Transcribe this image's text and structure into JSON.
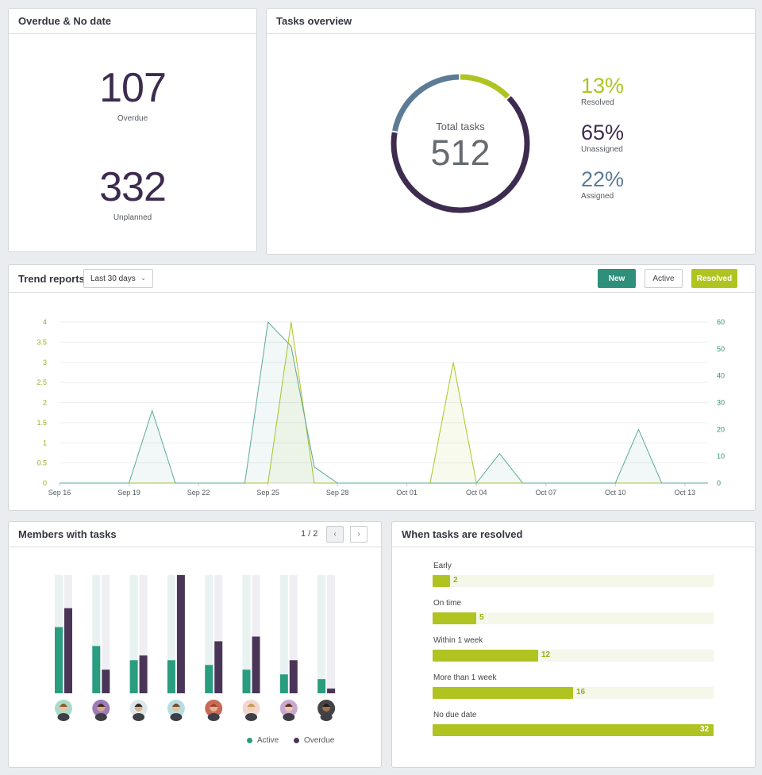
{
  "overdue_panel": {
    "title": "Overdue & No date",
    "overdue_value": "107",
    "overdue_label": "Overdue",
    "unplanned_value": "332",
    "unplanned_label": "Unplanned"
  },
  "overview_panel": {
    "title": "Tasks overview",
    "total_label": "Total tasks",
    "total_value": "512",
    "stats": [
      {
        "value": "13%",
        "label": "Resolved",
        "fraction": 0.13,
        "color": "#b0c421"
      },
      {
        "value": "65%",
        "label": "Unassigned",
        "fraction": 0.65,
        "color": "#3d2c4f"
      },
      {
        "value": "22%",
        "label": "Assigned",
        "fraction": 0.22,
        "color": "#5c7c96"
      }
    ]
  },
  "trend_panel": {
    "title": "Trend reports",
    "range_value": "Last 30 days",
    "buttons": {
      "new": "New",
      "active": "Active",
      "resolved": "Resolved"
    }
  },
  "chart_data": {
    "type": "area",
    "x": [
      "Sep 16",
      "Sep 17",
      "Sep 18",
      "Sep 19",
      "Sep 20",
      "Sep 21",
      "Sep 22",
      "Sep 23",
      "Sep 24",
      "Sep 25",
      "Sep 26",
      "Sep 27",
      "Sep 28",
      "Sep 29",
      "Sep 30",
      "Oct 01",
      "Oct 02",
      "Oct 03",
      "Oct 04",
      "Oct 05",
      "Oct 06",
      "Oct 07",
      "Oct 08",
      "Oct 09",
      "Oct 10",
      "Oct 11",
      "Oct 12",
      "Oct 13",
      "Oct 14"
    ],
    "x_tick_labels": [
      "Sep 16",
      "Sep 19",
      "Sep 22",
      "Sep 25",
      "Sep 28",
      "Oct 01",
      "Oct 04",
      "Oct 07",
      "Oct 10",
      "Oct 13"
    ],
    "y_left_ticks": [
      "0",
      "0.5",
      "1",
      "1.5",
      "2",
      "2.5",
      "3",
      "3.5",
      "4"
    ],
    "y_left_range": [
      0,
      4
    ],
    "y_right_ticks": [
      "0",
      "10",
      "20",
      "30",
      "40",
      "50",
      "60"
    ],
    "y_right_range": [
      0,
      60
    ],
    "grid": true,
    "series": [
      {
        "axis": "left",
        "color": "#b0c421",
        "values": [
          0,
          0,
          0,
          0,
          0,
          0,
          0,
          0,
          0,
          0,
          4,
          0,
          0,
          0,
          0,
          0,
          0,
          3,
          0,
          0,
          0,
          0,
          0,
          0,
          0,
          0,
          0,
          0,
          0
        ]
      },
      {
        "axis": "right",
        "color": "#5aa99a",
        "values": [
          0,
          0,
          0,
          0,
          27,
          0,
          0,
          0,
          0,
          60,
          51,
          6,
          0,
          0,
          0,
          0,
          0,
          0,
          0,
          11,
          0,
          0,
          0,
          0,
          0,
          20,
          0,
          0,
          0
        ]
      }
    ]
  },
  "members_panel": {
    "title": "Members with tasks",
    "pager": "1 / 2",
    "prev_icon": "‹",
    "next_icon": "›",
    "legend_active": "Active",
    "legend_overdue": "Overdue",
    "colors": {
      "active": "#2a9d80",
      "overdue": "#4a3558",
      "active_track": "#e8f3f1",
      "overdue_track": "#efeef2"
    },
    "members": [
      {
        "active": 0.56,
        "overdue": 0.72,
        "skin": "#e9c2a2",
        "hair": "#8b5a2b",
        "bg": "#a8dcc8"
      },
      {
        "active": 0.4,
        "overdue": 0.2,
        "skin": "#d9a88a",
        "hair": "#3a2a22",
        "bg": "#9c7bb8"
      },
      {
        "active": 0.28,
        "overdue": 0.32,
        "skin": "#d7b394",
        "hair": "#2b2b2b",
        "bg": "#dfe6ea"
      },
      {
        "active": 0.28,
        "overdue": 1.0,
        "skin": "#e6c0a0",
        "hair": "#6b4a2e",
        "bg": "#b6dde0"
      },
      {
        "active": 0.24,
        "overdue": 0.44,
        "skin": "#e2b496",
        "hair": "#a8402a",
        "bg": "#c76a58"
      },
      {
        "active": 0.2,
        "overdue": 0.48,
        "skin": "#efcfb6",
        "hair": "#c99a56",
        "bg": "#f0d8d0"
      },
      {
        "active": 0.16,
        "overdue": 0.28,
        "skin": "#edc7ad",
        "hair": "#5a2e24",
        "bg": "#c9a8cf"
      },
      {
        "active": 0.12,
        "overdue": 0.04,
        "skin": "#a0714f",
        "hair": "#1c1c1c",
        "bg": "#444444"
      }
    ]
  },
  "resolved_panel": {
    "title": "When tasks are resolved",
    "max": 32,
    "items": [
      {
        "label": "Early",
        "value": "2",
        "count": 2
      },
      {
        "label": "On time",
        "value": "5",
        "count": 5
      },
      {
        "label": "Within 1 week",
        "value": "12",
        "count": 12
      },
      {
        "label": "More than 1 week",
        "value": "16",
        "count": 16
      },
      {
        "label": "No due date",
        "value": "32",
        "count": 32
      }
    ]
  }
}
